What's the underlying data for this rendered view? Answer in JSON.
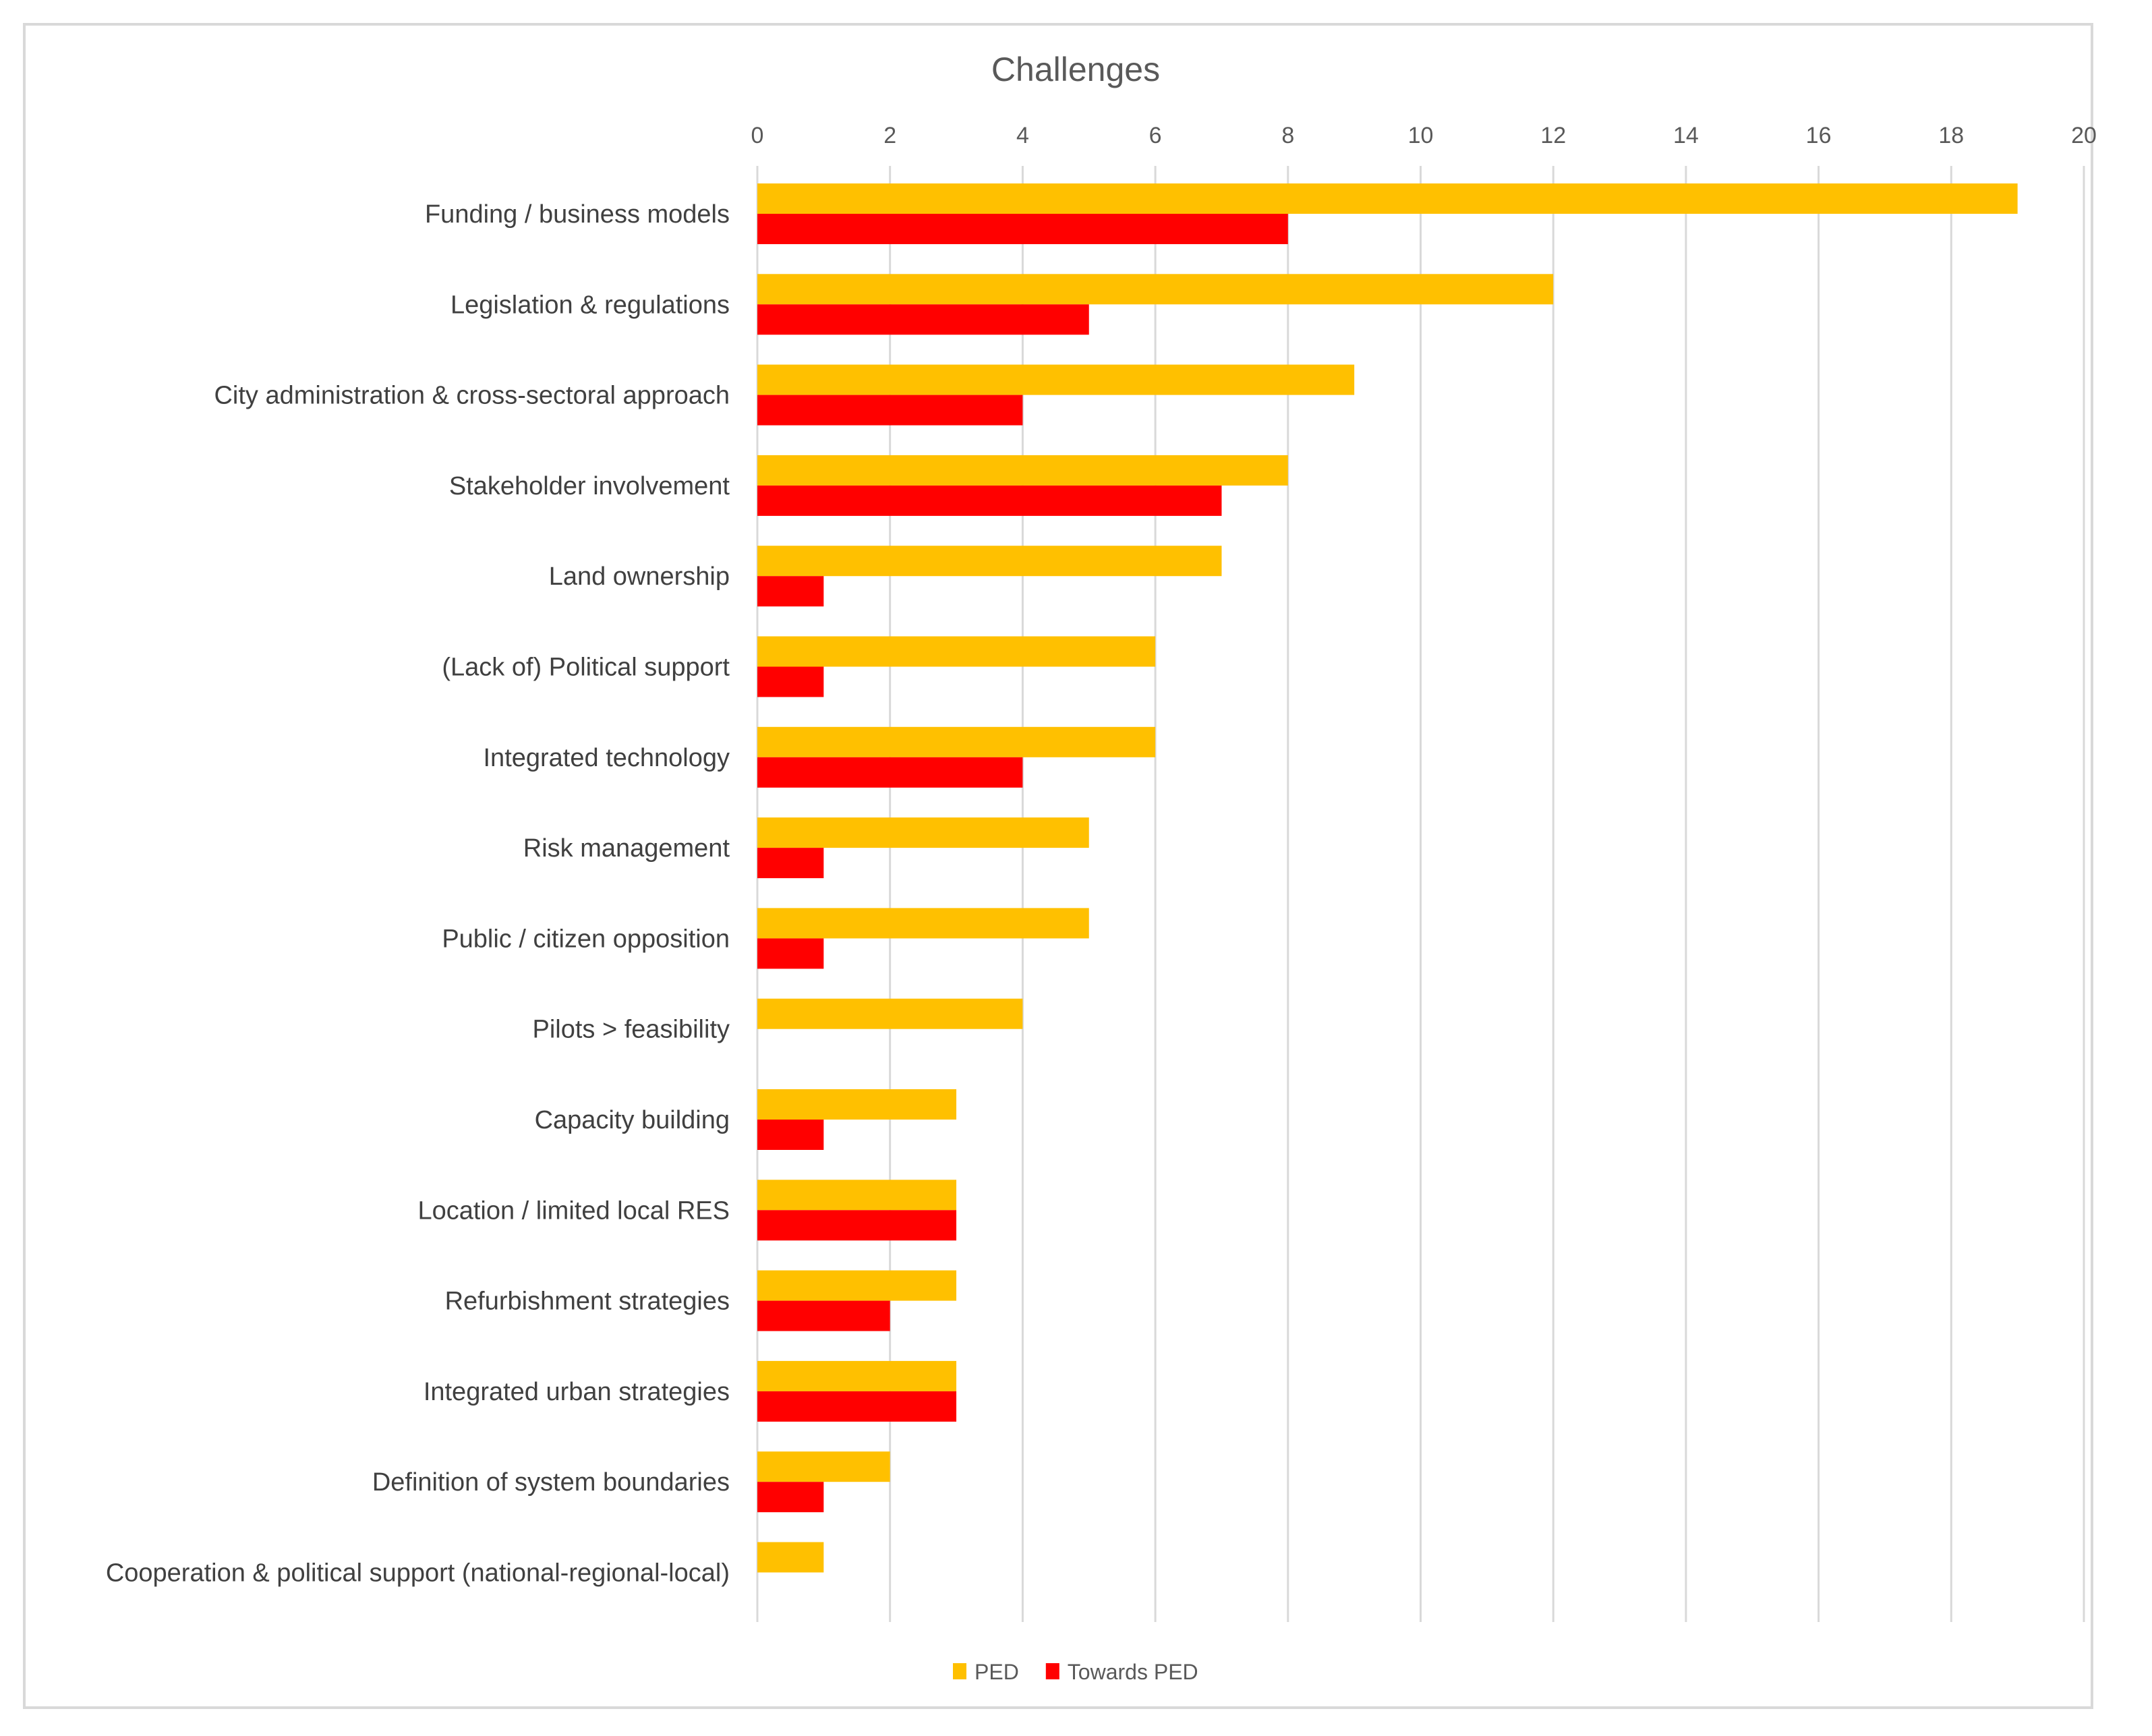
{
  "chart_data": {
    "type": "bar",
    "orientation": "horizontal",
    "title": "Challenges",
    "xlabel": "",
    "ylabel": "",
    "xlim": [
      0,
      20
    ],
    "x_ticks": [
      0,
      2,
      4,
      6,
      8,
      10,
      12,
      14,
      16,
      18,
      20
    ],
    "grid": true,
    "legend_position": "bottom",
    "categories": [
      "Funding / business models",
      "Legislation & regulations",
      "City administration & cross-sectoral approach",
      "Stakeholder involvement",
      "Land ownership",
      "(Lack of) Political support",
      "Integrated technology",
      "Risk management",
      "Public / citizen opposition",
      "Pilots > feasibility",
      "Capacity building",
      "Location / limited local RES",
      "Refurbishment strategies",
      "Integrated urban strategies",
      "Definition of system boundaries",
      "Cooperation & political support (national-regional-local)"
    ],
    "series": [
      {
        "name": "PED",
        "color": "#FFC000",
        "values": [
          19,
          12,
          9,
          8,
          7,
          6,
          6,
          5,
          5,
          4,
          3,
          3,
          3,
          3,
          2,
          1
        ]
      },
      {
        "name": "Towards PED",
        "color": "#FF0000",
        "values": [
          8,
          5,
          4,
          7,
          1,
          1,
          4,
          1,
          1,
          0,
          1,
          3,
          2,
          3,
          1,
          0
        ]
      }
    ]
  }
}
